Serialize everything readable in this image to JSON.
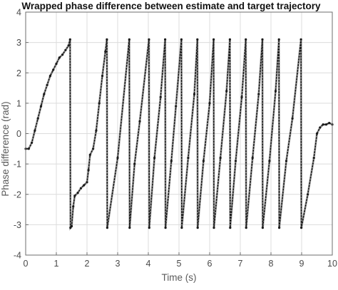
{
  "chart_data": {
    "type": "line",
    "title": "Wrapped phase difference between estimate and target trajectory",
    "xlabel": "Time (s)",
    "ylabel": "Phase difference (rad)",
    "xlim": [
      0,
      10
    ],
    "ylim": [
      -4,
      4
    ],
    "xticks": [
      "0",
      "1",
      "2",
      "3",
      "4",
      "5",
      "6",
      "7",
      "8",
      "9",
      "10"
    ],
    "yticks": [
      "-4",
      "-3",
      "-2",
      "-1",
      "0",
      "1",
      "2",
      "3",
      "4"
    ],
    "grid": true,
    "legend": "none",
    "colors": {
      "series": "#1a1a1a",
      "grid": "#dcdcdc",
      "frame": "#6e6e6e"
    },
    "series": [
      {
        "x": [
          0.0,
          0.1,
          0.2,
          0.3,
          0.4,
          0.5,
          0.6,
          0.7,
          0.8,
          0.9,
          1.0,
          1.1,
          1.2,
          1.3,
          1.4,
          1.45,
          1.46,
          1.5,
          1.55,
          1.6,
          1.7,
          1.8,
          1.9,
          2.0,
          2.05,
          2.1,
          2.2,
          2.3,
          2.4,
          2.5,
          2.6,
          2.65,
          2.66,
          3.0,
          3.38,
          3.39,
          3.55,
          3.72,
          4.02,
          4.03,
          4.2,
          4.4,
          4.55,
          4.56,
          4.75,
          4.9,
          5.08,
          5.09,
          5.3,
          5.5,
          5.6,
          5.61,
          5.8,
          6.0,
          6.13,
          6.14,
          6.35,
          6.55,
          6.66,
          6.67,
          6.85,
          7.05,
          7.18,
          7.19,
          7.4,
          7.6,
          7.72,
          7.73,
          7.95,
          8.15,
          8.26,
          8.27,
          8.5,
          8.7,
          8.98,
          8.99,
          9.2,
          9.4,
          9.5,
          9.6,
          9.7,
          9.8,
          9.9,
          10.0
        ],
        "y": [
          -0.5,
          -0.5,
          -0.3,
          0.1,
          0.5,
          0.9,
          1.3,
          1.6,
          1.9,
          2.1,
          2.3,
          2.5,
          2.6,
          2.75,
          2.9,
          3.1,
          -3.1,
          -3.05,
          -2.4,
          -2.05,
          -1.95,
          -1.8,
          -1.7,
          -1.6,
          -1.2,
          -0.7,
          -0.5,
          0.1,
          1.0,
          1.9,
          2.7,
          3.1,
          -3.1,
          -0.8,
          3.1,
          -3.1,
          -1.0,
          0.4,
          3.1,
          -3.1,
          -0.8,
          1.2,
          3.1,
          -3.1,
          -0.9,
          0.9,
          3.1,
          -3.1,
          -0.8,
          1.3,
          3.1,
          -3.1,
          -0.9,
          1.0,
          3.1,
          -3.1,
          -0.8,
          1.4,
          3.1,
          -3.1,
          -0.9,
          1.2,
          3.1,
          -3.1,
          -0.8,
          1.3,
          3.1,
          -3.1,
          -0.9,
          1.4,
          3.1,
          -3.1,
          -0.9,
          0.5,
          3.1,
          -3.1,
          -2.0,
          -0.8,
          0.0,
          0.2,
          0.3,
          0.3,
          0.35,
          0.3
        ]
      }
    ]
  }
}
